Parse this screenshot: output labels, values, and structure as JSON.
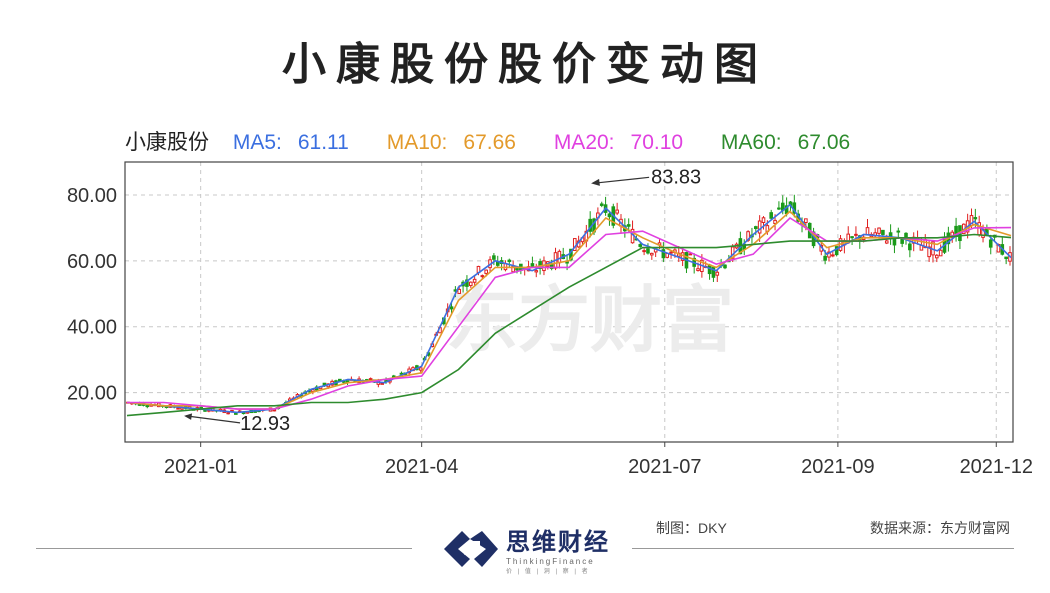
{
  "title": "小康股份股价变动图",
  "legend": {
    "name": "小康股份",
    "items": [
      {
        "label": "MA5:",
        "value": "61.11",
        "color": "#3b6fe0"
      },
      {
        "label": "MA10:",
        "value": "67.66",
        "color": "#e39a2b"
      },
      {
        "label": "MA20:",
        "value": "70.10",
        "color": "#e040e0"
      },
      {
        "label": "MA60:",
        "value": "67.06",
        "color": "#2e8b2e"
      }
    ]
  },
  "watermark": "东方财富",
  "footer": {
    "brand_cn": "思维财经",
    "brand_en": "ThinkingFinance",
    "brand_sub": "价 | 值 | 洞 | 察 | 者",
    "maker": "制图：DKY",
    "source": "数据来源：东方财富网"
  },
  "chart_data": {
    "type": "line",
    "ylim": [
      5,
      90
    ],
    "yticks": [
      "20.00",
      "40.00",
      "60.00",
      "80.00"
    ],
    "xticks": [
      "2021-01",
      "2021-04",
      "2021-07",
      "2021-09",
      "2021-12"
    ],
    "annotations": [
      {
        "text": "83.83",
        "x": "2021-06",
        "y": 83.83
      },
      {
        "text": "12.93",
        "x": "2021-01",
        "y": 12.93
      }
    ],
    "x": [
      "2020-12",
      "2021-01a",
      "2021-01b",
      "2021-02a",
      "2021-02b",
      "2021-03a",
      "2021-03b",
      "2021-04a",
      "2021-04b",
      "2021-05a",
      "2021-05b",
      "2021-06a",
      "2021-06b",
      "2021-07a",
      "2021-07b",
      "2021-08a",
      "2021-08b",
      "2021-09a",
      "2021-09b",
      "2021-10a",
      "2021-10b",
      "2021-11a",
      "2021-11b",
      "2021-12a",
      "2021-12b"
    ],
    "series": [
      {
        "name": "MA5",
        "color": "#3b6fe0",
        "values": [
          17,
          16,
          15,
          14,
          15,
          21,
          24,
          23,
          28,
          52,
          60,
          57,
          62,
          76,
          65,
          61,
          57,
          68,
          77,
          62,
          68,
          67,
          63,
          72,
          61
        ]
      },
      {
        "name": "MA10",
        "color": "#e39a2b",
        "values": [
          17,
          16,
          16,
          15,
          15,
          20,
          23,
          24,
          26,
          48,
          58,
          58,
          60,
          73,
          67,
          62,
          58,
          65,
          75,
          64,
          67,
          67,
          65,
          71,
          67.66
        ]
      },
      {
        "name": "MA20",
        "color": "#e040e0",
        "values": [
          17,
          17,
          16,
          15,
          15,
          18,
          22,
          24,
          25,
          40,
          55,
          58,
          58,
          68,
          69,
          64,
          59,
          62,
          73,
          66,
          66,
          67,
          66,
          70,
          70.1
        ]
      },
      {
        "name": "MA60",
        "color": "#2e8b2e",
        "values": [
          13,
          14,
          15,
          16,
          16,
          17,
          17,
          18,
          20,
          27,
          38,
          45,
          52,
          58,
          64,
          64,
          64,
          65,
          66,
          66,
          66,
          67,
          67,
          68,
          67.06
        ]
      }
    ]
  }
}
